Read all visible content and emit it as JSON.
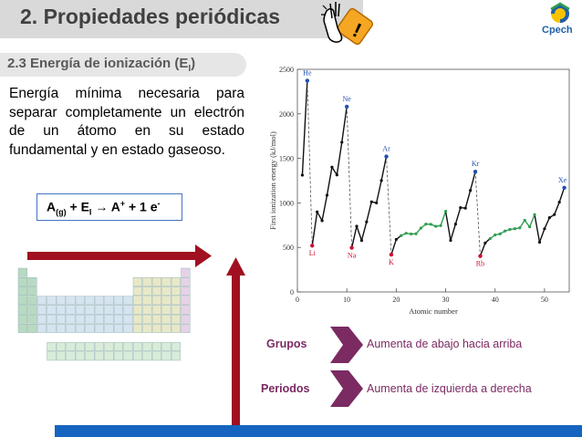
{
  "header": {
    "title": "2. Propiedades periódicas",
    "logo_text": "Cpech"
  },
  "section": {
    "title_main": "2.3 Energía de ionización (E",
    "title_sub": "I",
    "title_end": ")"
  },
  "definition": {
    "text": "Energía mínima necesaria para separar completamente un electrón de un átomo en su estado fundamental y en estado gaseoso."
  },
  "equation": {
    "a": "A",
    "a_sub": "(g)",
    "plus1": " + E",
    "e_sub": "I",
    "arrow": " → ",
    "cation": "A",
    "cation_sup": "+",
    "tail": " + 1 e",
    "e_sup": "-"
  },
  "chart_data": {
    "type": "line",
    "xlabel": "Atomic number",
    "ylabel": "First ionization energy (kJ/mol)",
    "xlim": [
      0,
      55
    ],
    "ylim": [
      0,
      2500
    ],
    "xticks": [
      0,
      10,
      20,
      30,
      40,
      50
    ],
    "yticks": [
      0,
      500,
      1000,
      1500,
      2000,
      2500
    ],
    "series": [
      {
        "values_x": [
          1,
          2,
          3,
          4,
          5,
          6,
          7,
          8,
          9,
          10,
          11,
          12,
          13,
          14,
          15,
          16,
          17,
          18,
          19,
          20,
          21,
          22,
          23,
          24,
          25,
          26,
          27,
          28,
          29,
          30,
          31,
          32,
          33,
          34,
          35,
          36,
          37,
          38,
          39,
          40,
          41,
          42,
          43,
          44,
          45,
          46,
          47,
          48,
          49,
          50,
          51,
          52,
          53,
          54
        ],
        "values_y": [
          1312,
          2372,
          520,
          899,
          801,
          1086,
          1402,
          1314,
          1681,
          2081,
          496,
          738,
          578,
          787,
          1012,
          1000,
          1251,
          1521,
          419,
          590,
          633,
          659,
          651,
          653,
          717,
          762,
          760,
          737,
          745,
          906,
          579,
          762,
          947,
          941,
          1140,
          1351,
          403,
          550,
          600,
          640,
          652,
          684,
          702,
          710,
          720,
          804,
          731,
          868,
          558,
          709,
          834,
          869,
          1008,
          1170
        ]
      }
    ],
    "annotations": [
      "He",
      "Ne",
      "Ar",
      "Kr",
      "Xe",
      "Li",
      "Na",
      "K",
      "Rb"
    ]
  },
  "trends": [
    {
      "label": "Grupos",
      "description": "Aumenta de abajo hacia arriba"
    },
    {
      "label": "Periodos",
      "description": "Aumenta de izquierda a derecha"
    }
  ],
  "colors": {
    "header_bg": "#d9d9d9",
    "accent_purple": "#7b2a62",
    "arrow_red": "#a01020",
    "bottom_bar": "#1565c0",
    "line_black": "#111111",
    "transition_green": "#2e9e4f",
    "noble_blue": "#2050b0",
    "alkali_red": "#d01030"
  }
}
